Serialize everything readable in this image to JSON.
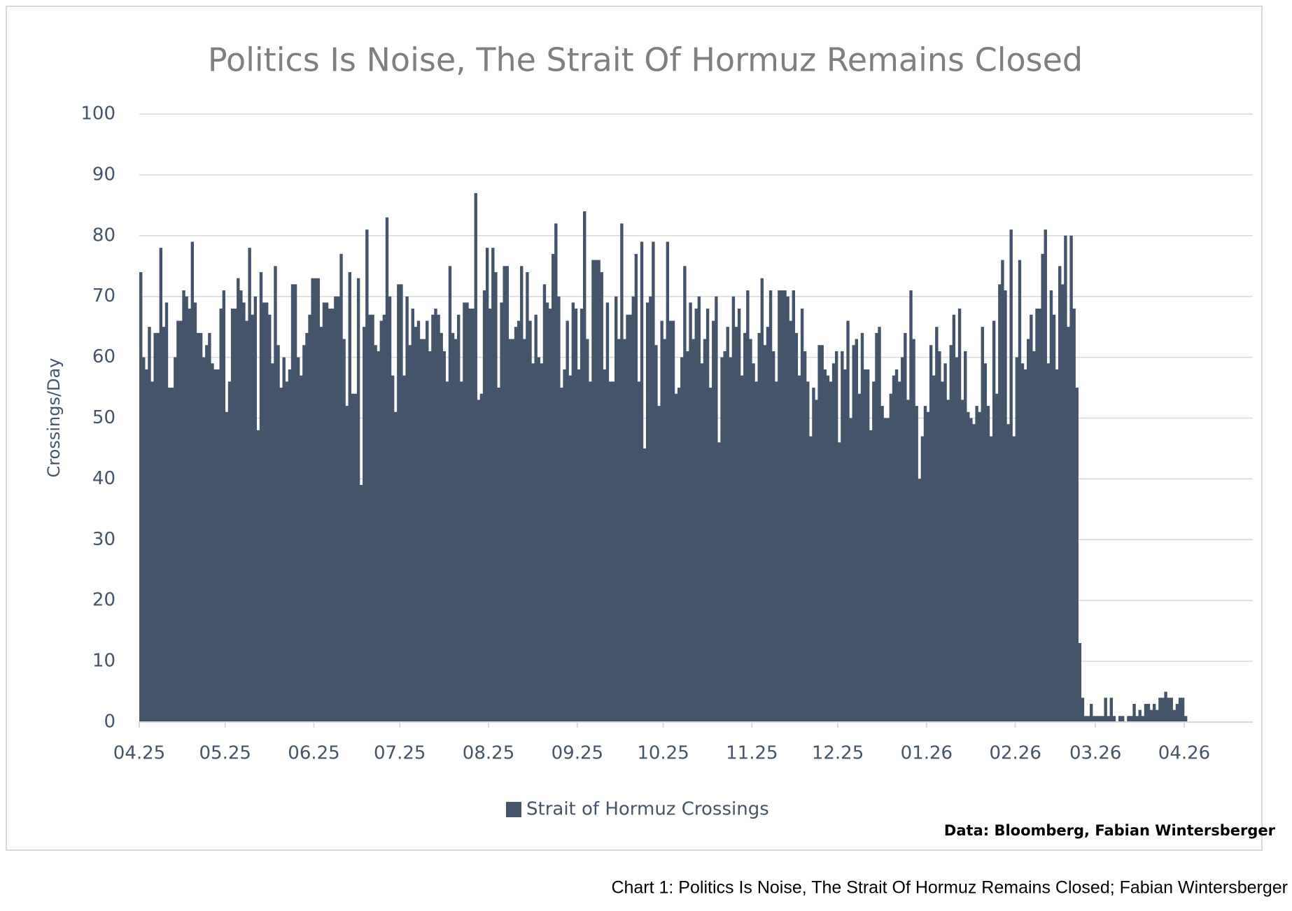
{
  "chart_data": {
    "type": "bar",
    "title": "Politics Is Noise, The Strait Of Hormuz Remains Closed",
    "y_label": "Crossings/Day",
    "source": "Data: Bloomberg, Fabian Wintersberger",
    "caption": "Chart 1: Politics Is Noise, The Strait Of Hormuz Remains Closed; Fabian Wintersberger",
    "categories": [
      "04.25",
      null,
      null,
      null,
      null,
      null,
      null,
      null,
      null,
      null,
      null,
      null,
      null,
      null,
      null,
      null,
      null,
      null,
      null,
      null,
      null,
      null,
      null,
      null,
      null,
      null,
      null,
      null,
      null,
      null,
      "05.25",
      null,
      null,
      null,
      null,
      null,
      null,
      null,
      null,
      null,
      null,
      null,
      null,
      null,
      null,
      null,
      null,
      null,
      null,
      null,
      null,
      null,
      null,
      null,
      null,
      null,
      null,
      null,
      null,
      null,
      null,
      "06.25",
      null,
      null,
      null,
      null,
      null,
      null,
      null,
      null,
      null,
      null,
      null,
      null,
      null,
      null,
      null,
      null,
      null,
      null,
      null,
      null,
      null,
      null,
      null,
      null,
      null,
      null,
      null,
      null,
      null,
      "07.25",
      null,
      null,
      null,
      null,
      null,
      null,
      null,
      null,
      null,
      null,
      null,
      null,
      null,
      null,
      null,
      null,
      null,
      null,
      null,
      null,
      null,
      null,
      null,
      null,
      null,
      null,
      null,
      null,
      null,
      null,
      "08.25",
      null,
      null,
      null,
      null,
      null,
      null,
      null,
      null,
      null,
      null,
      null,
      null,
      null,
      null,
      null,
      null,
      null,
      null,
      null,
      null,
      null,
      null,
      null,
      null,
      null,
      null,
      null,
      null,
      null,
      null,
      "09.25",
      null,
      null,
      null,
      null,
      null,
      null,
      null,
      null,
      null,
      null,
      null,
      null,
      null,
      null,
      null,
      null,
      null,
      null,
      null,
      null,
      null,
      null,
      null,
      null,
      null,
      null,
      null,
      null,
      null,
      "10.25",
      null,
      null,
      null,
      null,
      null,
      null,
      null,
      null,
      null,
      null,
      null,
      null,
      null,
      null,
      null,
      null,
      null,
      null,
      null,
      null,
      null,
      null,
      null,
      null,
      null,
      null,
      null,
      null,
      null,
      null,
      "11.25",
      null,
      null,
      null,
      null,
      null,
      null,
      null,
      null,
      null,
      null,
      null,
      null,
      null,
      null,
      null,
      null,
      null,
      null,
      null,
      null,
      null,
      null,
      null,
      null,
      null,
      null,
      null,
      null,
      null,
      "12.25",
      null,
      null,
      null,
      null,
      null,
      null,
      null,
      null,
      null,
      null,
      null,
      null,
      null,
      null,
      null,
      null,
      null,
      null,
      null,
      null,
      null,
      null,
      null,
      null,
      null,
      null,
      null,
      null,
      null,
      null,
      "01.26",
      null,
      null,
      null,
      null,
      null,
      null,
      null,
      null,
      null,
      null,
      null,
      null,
      null,
      null,
      null,
      null,
      null,
      null,
      null,
      null,
      null,
      null,
      null,
      null,
      null,
      null,
      null,
      null,
      null,
      null,
      "02.26",
      null,
      null,
      null,
      null,
      null,
      null,
      null,
      null,
      null,
      null,
      null,
      null,
      null,
      null,
      null,
      null,
      null,
      null,
      null,
      null,
      null,
      null,
      null,
      null,
      null,
      null,
      null,
      "03.26",
      null,
      null,
      null,
      null,
      null,
      null,
      null,
      null,
      null,
      null,
      null,
      null,
      null,
      null,
      null,
      null,
      null,
      null,
      null,
      null,
      null,
      null,
      null,
      null,
      null,
      null,
      null,
      null,
      null,
      null,
      "04.26"
    ],
    "series": [
      {
        "name": "Strait of Hormuz Crossings",
        "color": "#44546a",
        "values": [
          74,
          60,
          58,
          65,
          56,
          64,
          64,
          78,
          65,
          69,
          55,
          55,
          60,
          66,
          66,
          71,
          70,
          68,
          79,
          69,
          64,
          64,
          60,
          62,
          64,
          59,
          58,
          58,
          68,
          71,
          51,
          56,
          68,
          68,
          73,
          71,
          69,
          66,
          78,
          67,
          70,
          48,
          74,
          69,
          69,
          67,
          59,
          75,
          62,
          55,
          60,
          56,
          58,
          72,
          72,
          60,
          57,
          62,
          64,
          67,
          73,
          73,
          73,
          65,
          69,
          69,
          68,
          68,
          70,
          70,
          77,
          63,
          52,
          74,
          54,
          54,
          73,
          39,
          65,
          81,
          67,
          67,
          62,
          61,
          66,
          67,
          83,
          70,
          57,
          51,
          72,
          72,
          57,
          70,
          62,
          68,
          65,
          66,
          63,
          63,
          66,
          61,
          67,
          68,
          67,
          64,
          61,
          56,
          75,
          64,
          63,
          67,
          56,
          69,
          69,
          68,
          68,
          87,
          53,
          54,
          71,
          78,
          68,
          78,
          74,
          55,
          69,
          75,
          75,
          63,
          63,
          65,
          66,
          75,
          63,
          74,
          66,
          59,
          67,
          60,
          59,
          72,
          69,
          68,
          77,
          82,
          70,
          55,
          58,
          66,
          57,
          69,
          68,
          58,
          68,
          84,
          63,
          56,
          76,
          76,
          76,
          74,
          58,
          69,
          56,
          56,
          70,
          63,
          82,
          63,
          67,
          67,
          70,
          77,
          56,
          79,
          45,
          69,
          70,
          79,
          62,
          52,
          66,
          63,
          79,
          66,
          66,
          54,
          55,
          60,
          75,
          61,
          69,
          63,
          68,
          70,
          59,
          63,
          68,
          55,
          66,
          70,
          46,
          60,
          61,
          65,
          60,
          70,
          65,
          68,
          57,
          64,
          71,
          63,
          59,
          56,
          64,
          73,
          62,
          65,
          71,
          61,
          56,
          71,
          71,
          71,
          70,
          66,
          71,
          64,
          57,
          68,
          61,
          56,
          47,
          55,
          53,
          62,
          62,
          58,
          57,
          56,
          59,
          61,
          46,
          61,
          58,
          66,
          50,
          62,
          63,
          54,
          64,
          58,
          58,
          48,
          56,
          64,
          65,
          52,
          50,
          50,
          54,
          57,
          58,
          56,
          60,
          64,
          53,
          71,
          63,
          52,
          40,
          47,
          52,
          51,
          62,
          57,
          65,
          61,
          56,
          59,
          53,
          62,
          67,
          60,
          68,
          53,
          61,
          51,
          50,
          49,
          52,
          51,
          65,
          59,
          52,
          47,
          66,
          54,
          72,
          76,
          71,
          49,
          81,
          47,
          60,
          76,
          59,
          58,
          63,
          67,
          61,
          68,
          68,
          77,
          81,
          59,
          71,
          67,
          58,
          75,
          72,
          80,
          65,
          80,
          68,
          55,
          13,
          4,
          1,
          1,
          3,
          1,
          1,
          1,
          1,
          4,
          1,
          4,
          1,
          0,
          1,
          1,
          0,
          1,
          1,
          3,
          1,
          2,
          1,
          3,
          3,
          2,
          3,
          2,
          4,
          4,
          5,
          4,
          4,
          2,
          3,
          4,
          4,
          1
        ]
      }
    ],
    "ylim": [
      0,
      100
    ],
    "yticks": [
      0,
      10,
      20,
      30,
      40,
      50,
      60,
      70,
      80,
      90,
      100
    ],
    "grid": true
  }
}
